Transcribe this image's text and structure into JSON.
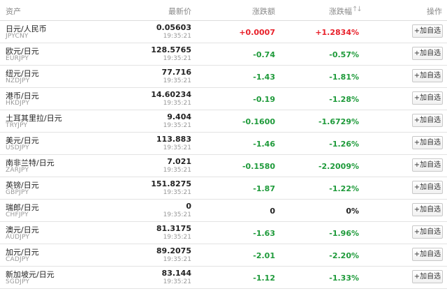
{
  "header": {
    "asset": "资产",
    "price": "最新价",
    "change": "涨跌额",
    "change_pct": "涨跌幅",
    "sort_glyph": "↑↓",
    "action": "操作"
  },
  "colors": {
    "up": "#e8202a",
    "down": "#1e9a3a",
    "flat": "#222222"
  },
  "add_label": "+加自选",
  "rows": [
    {
      "name": "日元/人民币",
      "code": "JPYCNY",
      "price": "0.05603",
      "time": "19:35:21",
      "change": "+0.0007",
      "change_pct": "+1.2834%",
      "dir": "up"
    },
    {
      "name": "欧元/日元",
      "code": "EURJPY",
      "price": "128.5765",
      "time": "19:35:21",
      "change": "-0.74",
      "change_pct": "-0.57%",
      "dir": "down"
    },
    {
      "name": "纽元/日元",
      "code": "NZDJPY",
      "price": "77.716",
      "time": "19:35:21",
      "change": "-1.43",
      "change_pct": "-1.81%",
      "dir": "down"
    },
    {
      "name": "港币/日元",
      "code": "HKDJPY",
      "price": "14.60234",
      "time": "19:35:21",
      "change": "-0.19",
      "change_pct": "-1.28%",
      "dir": "down"
    },
    {
      "name": "土耳其里拉/日元",
      "code": "TRYJPY",
      "price": "9.404",
      "time": "19:35:21",
      "change": "-0.1600",
      "change_pct": "-1.6729%",
      "dir": "down"
    },
    {
      "name": "美元/日元",
      "code": "USDJPY",
      "price": "113.883",
      "time": "19:35:21",
      "change": "-1.46",
      "change_pct": "-1.26%",
      "dir": "down"
    },
    {
      "name": "南非兰特/日元",
      "code": "ZARJPY",
      "price": "7.021",
      "time": "19:35:21",
      "change": "-0.1580",
      "change_pct": "-2.2009%",
      "dir": "down"
    },
    {
      "name": "英镑/日元",
      "code": "GBPJPY",
      "price": "151.8275",
      "time": "19:35:21",
      "change": "-1.87",
      "change_pct": "-1.22%",
      "dir": "down"
    },
    {
      "name": "瑞郎/日元",
      "code": "CHFJPY",
      "price": "0",
      "time": "19:35:21",
      "change": "0",
      "change_pct": "0%",
      "dir": "flat"
    },
    {
      "name": "澳元/日元",
      "code": "AUDJPY",
      "price": "81.3175",
      "time": "19:35:21",
      "change": "-1.63",
      "change_pct": "-1.96%",
      "dir": "down"
    },
    {
      "name": "加元/日元",
      "code": "CADJPY",
      "price": "89.2075",
      "time": "19:35:21",
      "change": "-2.01",
      "change_pct": "-2.20%",
      "dir": "down"
    },
    {
      "name": "新加坡元/日元",
      "code": "SGDJPY",
      "price": "83.144",
      "time": "19:35:21",
      "change": "-1.12",
      "change_pct": "-1.33%",
      "dir": "down"
    }
  ]
}
